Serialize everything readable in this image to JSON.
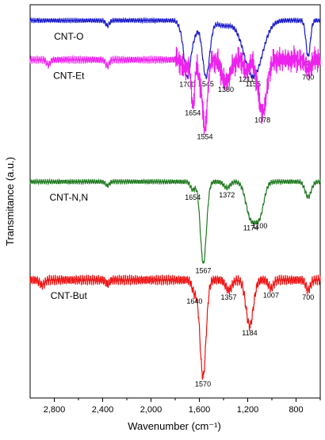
{
  "chart_data": {
    "type": "line",
    "xlabel": "Wavenumber (cm⁻¹)",
    "ylabel": "Transmitance (a.u.)",
    "x_reversed": true,
    "xlim": [
      3000,
      600
    ],
    "xticks": [
      2800,
      2400,
      2000,
      1600,
      1200,
      800
    ],
    "xtick_labels": [
      "2,800",
      "2,400",
      "2,000",
      "1,600",
      "1,200",
      "800"
    ],
    "grid": false,
    "series": [
      {
        "name": "CNT-O",
        "color": "#1a1acc",
        "baseline": 0.96,
        "wobble": 0.004,
        "features": [
          {
            "x": 2360,
            "depth": 0.05,
            "width": 15
          },
          {
            "x": 1760,
            "depth": 0.04,
            "width": 20
          },
          {
            "x": 1700,
            "depth": 0.55,
            "width": 28
          },
          {
            "x": 1640,
            "depth": 0.12,
            "width": 25
          },
          {
            "x": 1545,
            "depth": 0.55,
            "width": 30
          },
          {
            "x": 1400,
            "depth": 0.05,
            "width": 60
          },
          {
            "x": 1155,
            "depth": 0.55,
            "width": 75
          },
          {
            "x": 700,
            "depth": 0.35,
            "width": 18
          }
        ],
        "annotations": [
          {
            "x": 1700,
            "label": "1700"
          },
          {
            "x": 1545,
            "label": "1545"
          },
          {
            "x": 1155,
            "label": "1155"
          },
          {
            "x": 700,
            "label": "700"
          }
        ]
      },
      {
        "name": "CNT-Et",
        "color": "#ee22ee",
        "baseline": 0.86,
        "wobble": 0.006,
        "noise_from": 1800,
        "features": [
          {
            "x": 2850,
            "depth": 0.05,
            "width": 15
          },
          {
            "x": 2360,
            "depth": 0.06,
            "width": 15
          },
          {
            "x": 1720,
            "depth": 0.1,
            "width": 20
          },
          {
            "x": 1654,
            "depth": 0.45,
            "width": 14
          },
          {
            "x": 1600,
            "depth": 0.15,
            "width": 15
          },
          {
            "x": 1554,
            "depth": 0.68,
            "width": 20
          },
          {
            "x": 1380,
            "depth": 0.22,
            "width": 35
          },
          {
            "x": 1211,
            "depth": 0.12,
            "width": 20
          },
          {
            "x": 1078,
            "depth": 0.52,
            "width": 35
          },
          {
            "x": 700,
            "depth": 0.1,
            "width": 20
          }
        ],
        "annotations": [
          {
            "x": 1654,
            "label": "1654"
          },
          {
            "x": 1554,
            "label": "1554"
          },
          {
            "x": 1380,
            "label": "1380"
          },
          {
            "x": 1211,
            "label": "1211"
          },
          {
            "x": 1078,
            "label": "1078"
          },
          {
            "x": 700,
            "label": "700"
          }
        ]
      },
      {
        "name": "CNT-N,N",
        "color": "#1f7a1f",
        "baseline": 0.55,
        "wobble": 0.004,
        "features": [
          {
            "x": 2360,
            "depth": 0.04,
            "width": 15
          },
          {
            "x": 1654,
            "depth": 0.08,
            "width": 18
          },
          {
            "x": 1567,
            "depth": 0.8,
            "width": 25
          },
          {
            "x": 1372,
            "depth": 0.06,
            "width": 25
          },
          {
            "x": 1174,
            "depth": 0.35,
            "width": 40
          },
          {
            "x": 1100,
            "depth": 0.3,
            "width": 35
          },
          {
            "x": 700,
            "depth": 0.15,
            "width": 25
          }
        ],
        "annotations": [
          {
            "x": 1654,
            "label": "1654"
          },
          {
            "x": 1567,
            "label": "1567"
          },
          {
            "x": 1372,
            "label": "1372"
          },
          {
            "x": 1174,
            "label": "1174"
          },
          {
            "x": 1100,
            "label": "1100"
          }
        ]
      },
      {
        "name": "CNT-But",
        "color": "#ee1111",
        "baseline": 0.3,
        "wobble": 0.008,
        "features": [
          {
            "x": 2900,
            "depth": 0.05,
            "width": 20
          },
          {
            "x": 2360,
            "depth": 0.04,
            "width": 15
          },
          {
            "x": 1640,
            "depth": 0.12,
            "width": 20
          },
          {
            "x": 1570,
            "depth": 0.95,
            "width": 25
          },
          {
            "x": 1357,
            "depth": 0.1,
            "width": 25
          },
          {
            "x": 1184,
            "depth": 0.45,
            "width": 30
          },
          {
            "x": 1007,
            "depth": 0.08,
            "width": 20
          },
          {
            "x": 700,
            "depth": 0.1,
            "width": 18
          }
        ],
        "annotations": [
          {
            "x": 1640,
            "label": "1640"
          },
          {
            "x": 1570,
            "label": "1570"
          },
          {
            "x": 1357,
            "label": "1357"
          },
          {
            "x": 1184,
            "label": "1184"
          },
          {
            "x": 1007,
            "label": "1007"
          },
          {
            "x": 700,
            "label": "700"
          }
        ]
      }
    ]
  }
}
